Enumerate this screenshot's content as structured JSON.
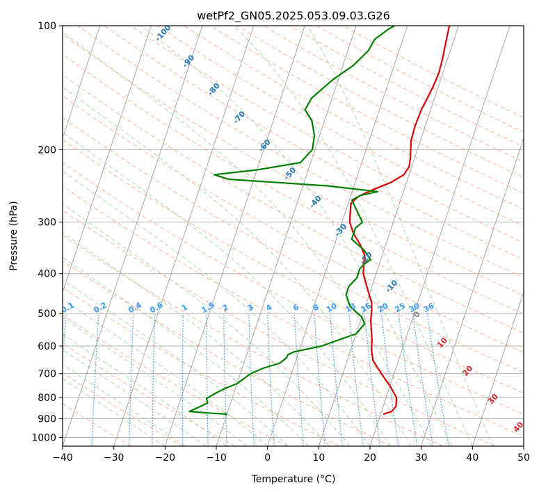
{
  "chart_data": {
    "type": "line",
    "subtype": "skew-t log-p diagram",
    "title": "wetPf2_GN05.2025.053.09.03.G26",
    "xlabel": "Temperature (°C)",
    "ylabel": "Pressure (hPa)",
    "xlim": [
      -40,
      50
    ],
    "ylim": [
      1050,
      100
    ],
    "y_scale": "log",
    "grid": true,
    "x_ticks": [
      "−40",
      "−30",
      "−20",
      "−10",
      "0",
      "10",
      "20",
      "30",
      "40",
      "50"
    ],
    "y_ticks": [
      "100",
      "200",
      "300",
      "400",
      "500",
      "600",
      "700",
      "800",
      "900",
      "1000"
    ],
    "series": [
      {
        "color": "#e00000",
        "x_values": [
          20.5,
          22.0,
          22.5,
          22.0,
          20.0,
          17.5,
          15.0,
          14.0,
          13.5,
          13.0,
          12.5,
          12.0,
          11.5,
          11.0,
          10.0,
          8.5,
          7.5,
          7.0,
          6.5,
          5.0,
          3.0,
          1.5,
          0.5,
          1.5,
          4.0,
          7.0,
          9.0,
          9.5,
          9.2,
          8.7,
          8.2,
          8.0,
          8.2,
          8.6,
          9.0,
          9.2,
          9.0,
          8.8,
          8.6,
          8.4,
          8.2
        ],
        "y_values": [
          878,
          865,
          840,
          800,
          750,
          700,
          650,
          610,
          580,
          560,
          540,
          520,
          490,
          470,
          450,
          420,
          400,
          380,
          360,
          340,
          320,
          300,
          270,
          260,
          250,
          240,
          230,
          220,
          210,
          200,
          190,
          175,
          160,
          150,
          140,
          130,
          120,
          115,
          110,
          105,
          100
        ]
      },
      {
        "color": "#008000",
        "x_values": [
          -10.0,
          -14.0,
          -17.5,
          -16.0,
          -14.5,
          -15.0,
          -13.5,
          -12.0,
          -10.0,
          -9.0,
          -8.0,
          -6.0,
          -3.0,
          -2.0,
          -2.0,
          -1.0,
          4.0,
          10.0,
          11.0,
          10.0,
          7.0,
          5.5,
          5.5,
          6.5,
          6.5,
          7.0,
          8.0,
          6.0,
          3.0,
          3.0,
          4.0,
          3.0,
          1.5,
          0.5,
          2.0,
          5.0,
          -5.0,
          -25.0,
          -28.0,
          -20.0,
          -12.0,
          -10.5,
          -11.0,
          -12.5,
          -14.5,
          -14.0,
          -11.0,
          -8.0,
          -6.0,
          -5.5,
          -3.5,
          -2.5
        ],
        "y_values": [
          878,
          872,
          865,
          845,
          825,
          805,
          780,
          760,
          740,
          720,
          700,
          680,
          660,
          640,
          630,
          620,
          600,
          560,
          530,
          510,
          480,
          450,
          430,
          410,
          390,
          380,
          370,
          350,
          330,
          310,
          300,
          290,
          275,
          265,
          258,
          253,
          245,
          236,
          230,
          224,
          215,
          200,
          185,
          170,
          160,
          150,
          135,
          125,
          115,
          108,
          102,
          100
        ]
      }
    ],
    "reference_lines": {
      "isotherm_step": 10,
      "dry_adiabat_labels": [
        "-100",
        "-90",
        "-80",
        "-70",
        "-60",
        "-50",
        "-40",
        "-30",
        "-20",
        "-10",
        "0",
        "10",
        "20",
        "30",
        "40"
      ],
      "mixing_ratio_labels": [
        "0.1",
        "0.2",
        "0.4",
        "0.6",
        "1",
        "1.5",
        "2",
        "3",
        "4",
        "6",
        "8",
        "10",
        "13",
        "16",
        "20",
        "25",
        "30",
        "36"
      ]
    },
    "colors": {
      "temperature": "#e00000",
      "dewpoint": "#008000",
      "isotherm": "#888888",
      "dry_adiabat": "#ff9f80",
      "moist_adiabat": "#8fcf8f",
      "mixing_ratio": "#2b8fdc",
      "dry_adiabat_label": "#1f77b4",
      "mixing_ratio_label": "#3399ff",
      "positive_label": "#d62728",
      "zero_label": "#7f7f7f"
    }
  }
}
